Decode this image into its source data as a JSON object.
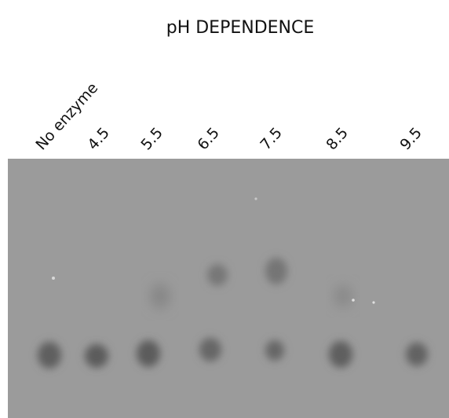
{
  "title": "pH DEPENDENCE",
  "lanes": [
    "No enzyme",
    "4.5",
    "5.5",
    "6.5",
    "7.5",
    "8.5",
    "9.5"
  ]
}
